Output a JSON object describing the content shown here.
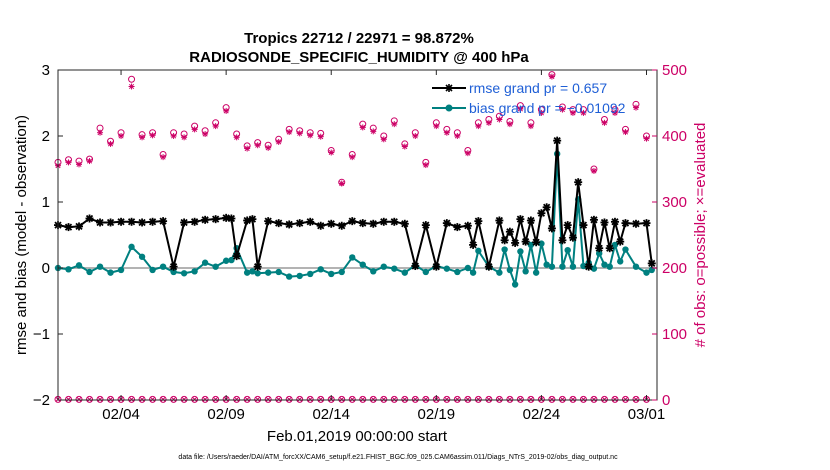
{
  "chart_data": {
    "type": "line",
    "title": "Tropics 22712 / 22971 = 98.872%",
    "subtitle": "RADIOSONDE_SPECIFIC_HUMIDITY @ 400 hPa",
    "xlabel": "Feb.01,2019 00:00:00 start",
    "ylabel": "rmse and bias (model - observation)",
    "ylabel_right": "# of obs: o=possible; ×=evaluated",
    "xlim": [
      0,
      28.5
    ],
    "ylim": [
      -2,
      3
    ],
    "ylim_right": [
      0,
      500
    ],
    "x_ticks": [
      3,
      8,
      13,
      18,
      23,
      28
    ],
    "x_tick_labels": [
      "02/04",
      "02/09",
      "02/14",
      "02/19",
      "02/24",
      "03/01"
    ],
    "y_ticks": [
      -2,
      -1,
      0,
      1,
      2,
      3
    ],
    "y_tick_labels": [
      "−2",
      "−1",
      "0",
      "1",
      "2",
      "3"
    ],
    "y_ticks_right": [
      0,
      100,
      200,
      300,
      400,
      500
    ],
    "y_tick_labels_right": [
      "0",
      "100",
      "200",
      "300",
      "400",
      "500"
    ],
    "legend": {
      "position": "top-right",
      "entries": [
        "rmse grand pr = 0.657",
        "bias grand pr = −0.01092"
      ]
    },
    "series": [
      {
        "name": "rmse",
        "color": "#000000",
        "marker": "star",
        "x": [
          0,
          0.5,
          1,
          1.5,
          2,
          2.5,
          3,
          3.5,
          4,
          4.5,
          5,
          5.5,
          6,
          6.5,
          7,
          7.5,
          8,
          8.25,
          8.5,
          9,
          9.25,
          9.5,
          10,
          10.5,
          11,
          11.5,
          12,
          12.5,
          13,
          13.5,
          14,
          14.5,
          15,
          15.5,
          16,
          16.5,
          17,
          17.5,
          18,
          18.5,
          19,
          19.5,
          19.75,
          20,
          20.5,
          21,
          21.25,
          21.5,
          21.75,
          22,
          22.25,
          22.5,
          22.75,
          23,
          23.25,
          23.5,
          23.75,
          24,
          24.25,
          24.5,
          24.75,
          25,
          25.25,
          25.5,
          25.75,
          26,
          26.25,
          26.5,
          26.75,
          27,
          27.5,
          28,
          28.25
        ],
        "values": [
          0.65,
          0.62,
          0.63,
          0.75,
          0.69,
          0.69,
          0.7,
          0.7,
          0.69,
          0.7,
          0.71,
          0.02,
          0.69,
          0.7,
          0.73,
          0.74,
          0.76,
          0.75,
          0.18,
          0.72,
          0.74,
          0.02,
          0.71,
          0.68,
          0.66,
          0.68,
          0.7,
          0.64,
          0.67,
          0.64,
          0.71,
          0.68,
          0.67,
          0.7,
          0.7,
          0.67,
          0.03,
          0.65,
          0.02,
          0.68,
          0.62,
          0.64,
          0.35,
          0.71,
          0.02,
          0.72,
          0.42,
          0.55,
          0.38,
          0.74,
          0.4,
          0.72,
          0.39,
          0.83,
          0.92,
          0.6,
          1.93,
          0.42,
          0.65,
          0.46,
          1.3,
          0.65,
          0.02,
          0.73,
          0.3,
          0.69,
          0.3,
          0.7,
          0.4,
          0.68,
          0.67,
          0.68,
          0.07
        ]
      },
      {
        "name": "bias",
        "color": "#008080",
        "marker": "circle",
        "x": [
          0,
          0.5,
          1,
          1.5,
          2,
          2.5,
          3,
          3.5,
          4,
          4.5,
          5,
          5.5,
          6,
          6.5,
          7,
          7.5,
          8,
          8.25,
          8.5,
          9,
          9.25,
          9.5,
          10,
          10.5,
          11,
          11.5,
          12,
          12.5,
          13,
          13.5,
          14,
          14.5,
          15,
          15.5,
          16,
          16.5,
          17,
          17.5,
          18,
          18.5,
          19,
          19.5,
          19.75,
          20,
          20.5,
          21,
          21.25,
          21.5,
          21.75,
          22,
          22.25,
          22.5,
          22.75,
          23,
          23.25,
          23.5,
          23.75,
          24,
          24.25,
          24.5,
          24.75,
          25,
          25.25,
          25.5,
          25.75,
          26,
          26.25,
          26.5,
          26.75,
          27,
          27.5,
          28,
          28.25
        ],
        "values": [
          0.0,
          -0.02,
          0.04,
          -0.06,
          0.02,
          -0.07,
          -0.03,
          0.32,
          0.17,
          -0.03,
          0.02,
          -0.06,
          -0.08,
          -0.05,
          0.08,
          0.02,
          0.11,
          0.12,
          0.3,
          -0.07,
          -0.05,
          -0.08,
          -0.07,
          -0.06,
          -0.13,
          -0.12,
          -0.09,
          -0.02,
          -0.09,
          -0.06,
          0.16,
          0.05,
          -0.05,
          0.02,
          -0.01,
          -0.07,
          0.04,
          -0.06,
          0.03,
          -0.01,
          -0.06,
          0.0,
          -0.07,
          0.26,
          0.02,
          -0.07,
          0.28,
          -0.03,
          -0.25,
          0.25,
          -0.05,
          0.35,
          -0.07,
          0.37,
          0.05,
          0.02,
          1.73,
          0.02,
          0.27,
          0.02,
          1.04,
          0.03,
          0.08,
          -0.01,
          0.22,
          0.05,
          0.02,
          0.35,
          0.1,
          0.28,
          0.02,
          -0.07,
          -0.03
        ]
      },
      {
        "name": "obs possible",
        "color": "#cc0066",
        "marker": "open-circle",
        "axis": "right",
        "x": [
          0,
          0.5,
          1,
          1.5,
          2,
          2.5,
          3,
          3.5,
          4,
          4.5,
          5,
          5.5,
          6,
          6.5,
          7,
          7.5,
          8,
          8.5,
          9,
          9.5,
          10,
          10.5,
          11,
          11.5,
          12,
          12.5,
          13,
          13.5,
          14,
          14.5,
          15,
          15.5,
          16,
          16.5,
          17,
          17.5,
          18,
          18.5,
          19,
          19.5,
          20,
          20.5,
          21,
          21.5,
          22,
          22.5,
          23,
          23.5,
          24,
          24.5,
          25,
          25.5,
          26,
          26.5,
          27,
          27.5,
          28
        ],
        "values": [
          360,
          364,
          362,
          365,
          412,
          392,
          405,
          486,
          402,
          405,
          372,
          405,
          403,
          415,
          408,
          420,
          443,
          403,
          385,
          390,
          386,
          395,
          410,
          408,
          405,
          404,
          378,
          330,
          372,
          418,
          412,
          400,
          423,
          388,
          405,
          360,
          420,
          410,
          405,
          378,
          420,
          425,
          430,
          422,
          446,
          420,
          440,
          493,
          444,
          440,
          440,
          350,
          425,
          440,
          410,
          448,
          400
        ]
      },
      {
        "name": "obs evaluated",
        "color": "#cc0066",
        "marker": "asterisk",
        "axis": "right",
        "x": [
          0,
          0.5,
          1,
          1.5,
          2,
          2.5,
          3,
          3.5,
          4,
          4.5,
          5,
          5.5,
          6,
          6.5,
          7,
          7.5,
          8,
          8.5,
          9,
          9.5,
          10,
          10.5,
          11,
          11.5,
          12,
          12.5,
          13,
          13.5,
          14,
          14.5,
          15,
          15.5,
          16,
          16.5,
          17,
          17.5,
          18,
          18.5,
          19,
          19.5,
          20,
          20.5,
          21,
          21.5,
          22,
          22.5,
          23,
          23.5,
          24,
          24.5,
          25,
          25.5,
          26,
          26.5,
          27,
          27.5,
          28
        ],
        "values": [
          355,
          360,
          357,
          362,
          405,
          388,
          400,
          475,
          398,
          401,
          368,
          400,
          398,
          410,
          403,
          415,
          438,
          398,
          381,
          386,
          382,
          391,
          406,
          404,
          401,
          399,
          375,
          328,
          368,
          413,
          407,
          395,
          418,
          384,
          400,
          356,
          415,
          405,
          400,
          374,
          415,
          420,
          425,
          418,
          441,
          415,
          435,
          490,
          440,
          435,
          435,
          347,
          420,
          435,
          406,
          443,
          396
        ]
      },
      {
        "name": "obs near zero",
        "color": "#cc0066",
        "marker": "circle-x",
        "axis": "right",
        "x": [
          0,
          0.5,
          1,
          1.5,
          2,
          2.5,
          3,
          3.5,
          4,
          4.5,
          5,
          5.5,
          6,
          6.5,
          7,
          7.5,
          8,
          8.5,
          9,
          9.5,
          10,
          10.5,
          11,
          11.5,
          12,
          12.5,
          13,
          13.5,
          14,
          14.5,
          15,
          15.5,
          16,
          16.5,
          17,
          17.5,
          18,
          18.5,
          19,
          19.5,
          20,
          20.5,
          21,
          21.5,
          22,
          22.5,
          23,
          23.5,
          24,
          24.5,
          25,
          25.5,
          26,
          26.5,
          27,
          27.5,
          28
        ],
        "values": [
          1,
          1,
          1,
          1,
          1,
          1,
          1,
          1,
          1,
          1,
          1,
          1,
          1,
          1,
          1,
          1,
          1,
          1,
          1,
          1,
          1,
          1,
          1,
          1,
          1,
          1,
          1,
          1,
          1,
          1,
          1,
          1,
          1,
          1,
          1,
          1,
          1,
          1,
          1,
          1,
          1,
          1,
          1,
          1,
          1,
          1,
          1,
          1,
          1,
          1,
          1,
          1,
          1,
          1,
          1,
          1,
          1
        ]
      }
    ],
    "reference_line": 0,
    "footnote": "data file: /Users/raeder/DAI/ATM_forcXX/CAM6_setup/f.e21.FHIST_BGC.f09_025.CAM6assim.011/Diags_NTrS_2019-02/obs_diag_output.nc"
  }
}
